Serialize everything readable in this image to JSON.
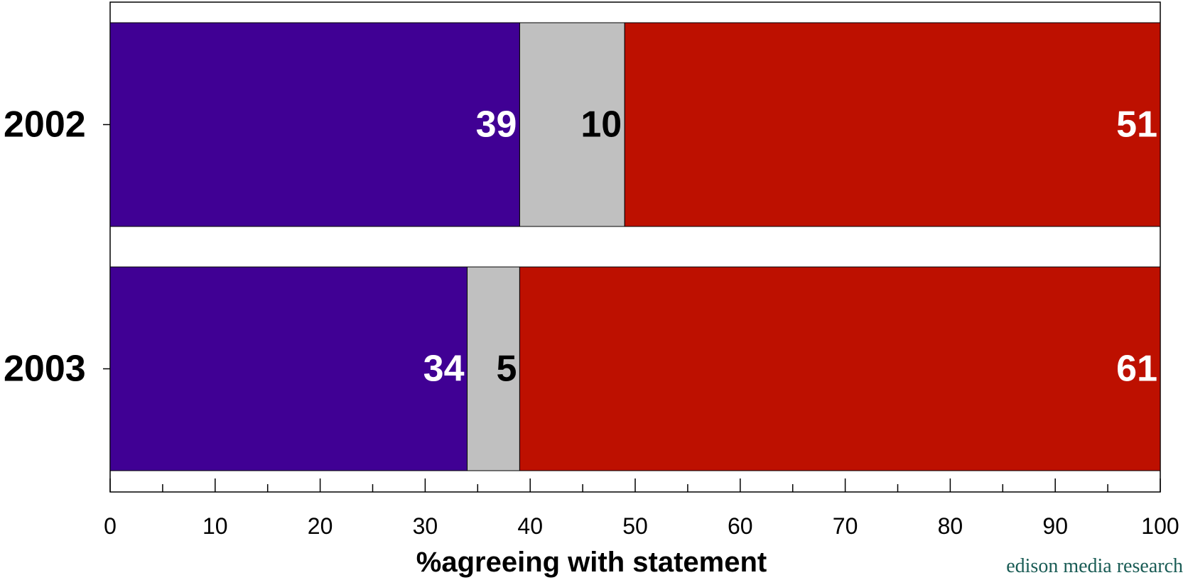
{
  "chart_data": {
    "type": "bar",
    "orientation": "horizontal",
    "stacked": true,
    "categories": [
      "2002",
      "2003"
    ],
    "series": [
      {
        "values": [
          39,
          34
        ],
        "color": "#400094",
        "label_color": "#ffffff"
      },
      {
        "values": [
          10,
          5
        ],
        "color": "#c0c0c0",
        "label_color": "#000000"
      },
      {
        "values": [
          51,
          61
        ],
        "color": "#bd1000",
        "label_color": "#ffffff"
      }
    ],
    "xlabel": "%agreeing with statement",
    "xlim": [
      0,
      100
    ],
    "x_ticks": [
      "0",
      "10",
      "20",
      "30",
      "40",
      "50",
      "60",
      "70",
      "80",
      "90",
      "100"
    ],
    "grid": false,
    "legend": "none"
  },
  "credit": "edison media research"
}
